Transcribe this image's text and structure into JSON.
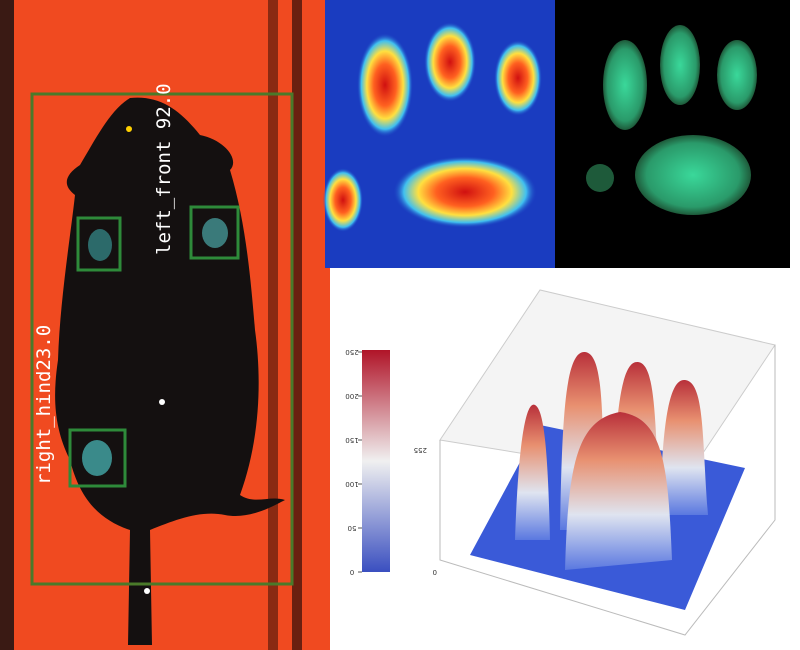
{
  "detections": [
    {
      "label": "left_front 92.0"
    },
    {
      "label": "right_hind23.0"
    }
  ],
  "colorbar": {
    "ticks": [
      0,
      50,
      100,
      150,
      200,
      250
    ],
    "range": [
      0,
      250
    ]
  },
  "z_axis": {
    "top": "255",
    "bottom": "0"
  }
}
